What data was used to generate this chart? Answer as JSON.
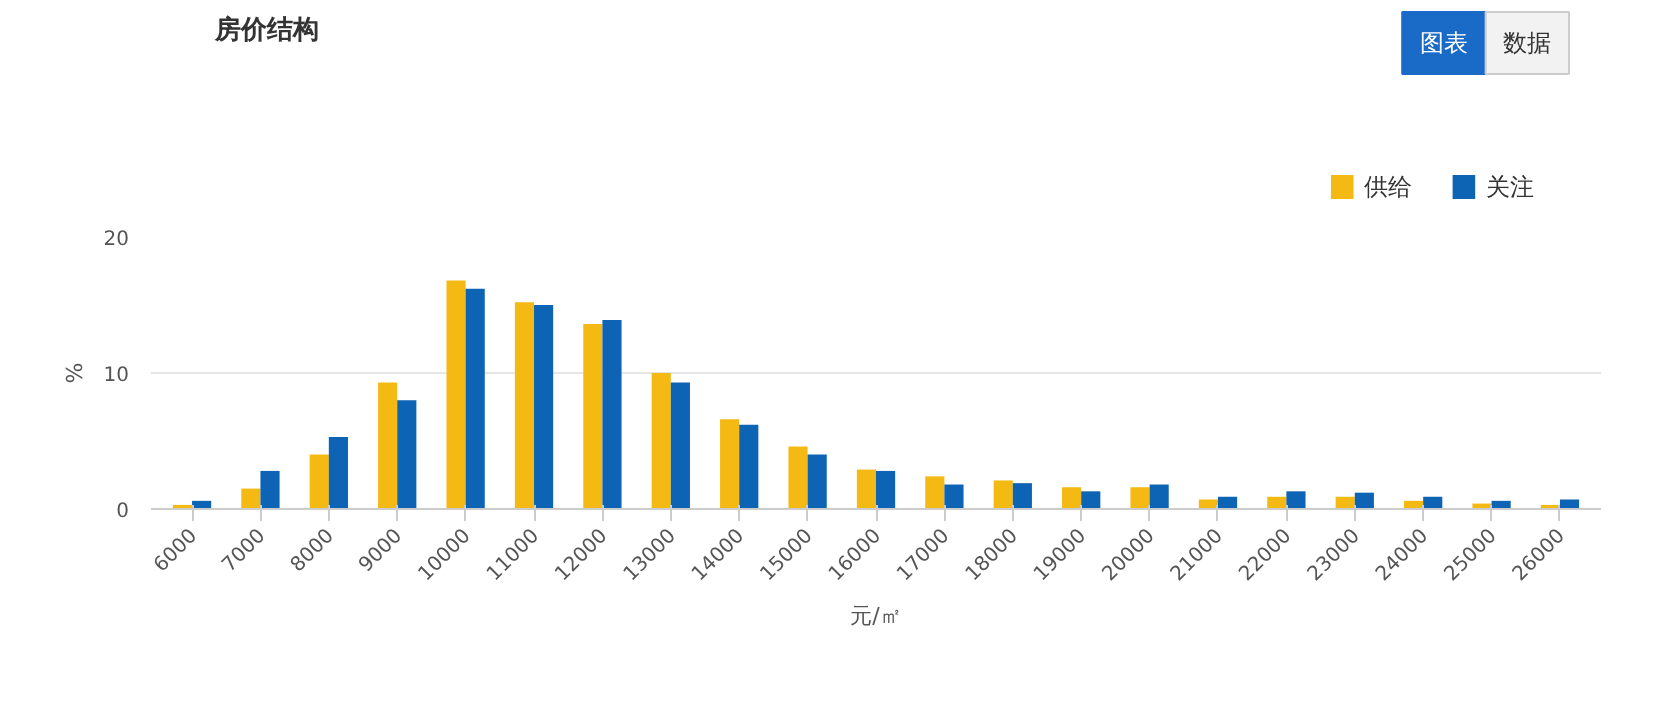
{
  "chart_data": {
    "type": "bar",
    "title": "房价结构",
    "xlabel": "元/㎡",
    "ylabel": "%",
    "annotations": [
      "图表",
      "数据"
    ],
    "categories": [
      "6000",
      "7000",
      "8000",
      "9000",
      "10000",
      "11000",
      "12000",
      "13000",
      "14000",
      "15000",
      "16000",
      "17000",
      "18000",
      "19000",
      "20000",
      "21000",
      "22000",
      "23000",
      "24000",
      "25000",
      "26000"
    ],
    "series": [
      {
        "name": "供给",
        "color": "#f5b914",
        "values": [
          0.3,
          1.5,
          4.0,
          9.3,
          16.8,
          15.2,
          13.6,
          10.0,
          6.6,
          4.6,
          2.9,
          2.4,
          2.1,
          1.6,
          1.6,
          0.7,
          0.9,
          0.9,
          0.6,
          0.4,
          0.3
        ]
      },
      {
        "name": "关注",
        "color": "#0e64b4",
        "values": [
          0.6,
          2.8,
          5.3,
          8.0,
          16.2,
          15.0,
          13.9,
          9.3,
          6.2,
          4.0,
          2.8,
          1.8,
          1.9,
          1.3,
          1.8,
          0.9,
          1.3,
          1.2,
          0.9,
          0.6,
          0.7
        ]
      }
    ],
    "ylim": [
      0,
      20
    ],
    "yticks": [
      0,
      10,
      20
    ],
    "grid": "y",
    "legend": "top right"
  }
}
